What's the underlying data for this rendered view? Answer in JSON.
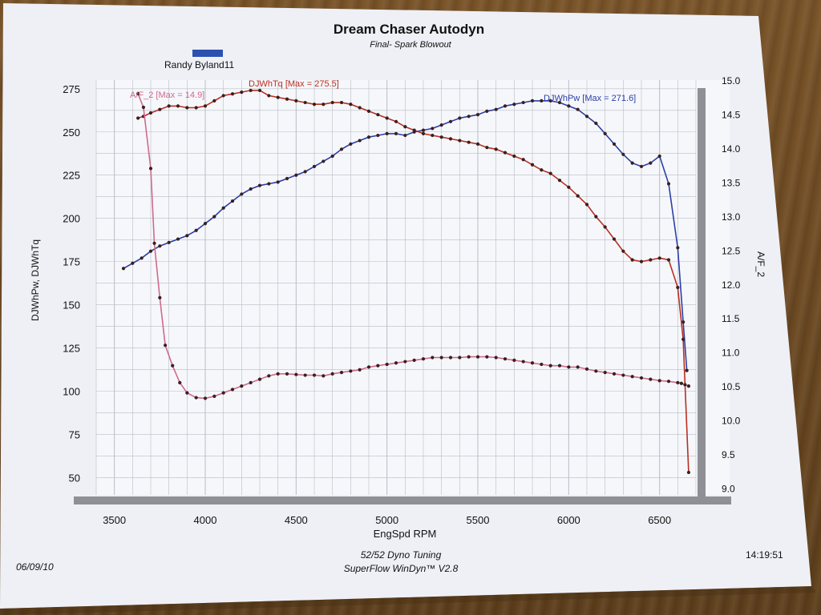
{
  "chart_data": {
    "type": "line",
    "title": "Dream Chaser Autodyn",
    "subtitle": "Final- Spark Blowout",
    "run_label": "Randy Byland11",
    "xlabel": "EngSpd  RPM",
    "ylabel": "DJWhPw, DJWhTq",
    "y2label": "A/F_2",
    "xlim": [
      3400,
      6700
    ],
    "ylim": [
      40,
      280
    ],
    "y2lim": [
      8.9,
      15.0
    ],
    "x_ticks": [
      "3500",
      "4000",
      "4500",
      "5000",
      "5500",
      "6000",
      "6500"
    ],
    "y_ticks": [
      "50",
      "75",
      "100",
      "125",
      "150",
      "175",
      "200",
      "225",
      "250",
      "275"
    ],
    "y2_ticks": [
      "9.0",
      "9.5",
      "10.0",
      "10.5",
      "11.0",
      "11.5",
      "12.0",
      "12.5",
      "13.0",
      "13.5",
      "14.0",
      "14.5",
      "15.0"
    ],
    "grid": true,
    "series": [
      {
        "name": "DJWhPw [Max = 271.6]",
        "axis": "left",
        "color": "#2b3fa8",
        "x": [
          3550,
          3600,
          3650,
          3700,
          3750,
          3800,
          3850,
          3900,
          3950,
          4000,
          4050,
          4100,
          4150,
          4200,
          4250,
          4300,
          4350,
          4400,
          4450,
          4500,
          4550,
          4600,
          4650,
          4700,
          4750,
          4800,
          4850,
          4900,
          4950,
          5000,
          5050,
          5100,
          5150,
          5200,
          5250,
          5300,
          5350,
          5400,
          5450,
          5500,
          5550,
          5600,
          5650,
          5700,
          5750,
          5800,
          5850,
          5900,
          5950,
          6000,
          6050,
          6100,
          6150,
          6200,
          6250,
          6300,
          6350,
          6400,
          6450,
          6500,
          6550,
          6600,
          6630,
          6650
        ],
        "y": [
          171,
          174,
          177,
          181,
          184,
          186,
          188,
          190,
          193,
          197,
          201,
          206,
          210,
          214,
          217,
          219,
          220,
          221,
          223,
          225,
          227,
          230,
          233,
          236,
          240,
          243,
          245,
          247,
          248,
          249,
          249,
          248,
          250,
          251,
          252,
          254,
          256,
          258,
          259,
          260,
          262,
          263,
          265,
          266,
          267,
          268,
          268,
          268,
          267,
          265,
          263,
          259,
          255,
          249,
          243,
          237,
          232,
          230,
          232,
          236,
          220,
          183,
          140,
          112
        ]
      },
      {
        "name": "DJWhTq [Max = 275.5]",
        "axis": "left",
        "color": "#b83020",
        "x": [
          3630,
          3660,
          3700,
          3750,
          3800,
          3850,
          3900,
          3950,
          4000,
          4050,
          4100,
          4150,
          4200,
          4250,
          4300,
          4350,
          4400,
          4450,
          4500,
          4550,
          4600,
          4650,
          4700,
          4750,
          4800,
          4850,
          4900,
          4950,
          5000,
          5050,
          5100,
          5150,
          5200,
          5250,
          5300,
          5350,
          5400,
          5450,
          5500,
          5550,
          5600,
          5650,
          5700,
          5750,
          5800,
          5850,
          5900,
          5950,
          6000,
          6050,
          6100,
          6150,
          6200,
          6250,
          6300,
          6350,
          6400,
          6450,
          6500,
          6550,
          6600,
          6630,
          6660
        ],
        "y": [
          258,
          259,
          261,
          263,
          265,
          265,
          264,
          264,
          265,
          268,
          271,
          272,
          273,
          274,
          274,
          271,
          270,
          269,
          268,
          267,
          266,
          266,
          267,
          267,
          266,
          264,
          262,
          260,
          258,
          256,
          253,
          251,
          249,
          248,
          247,
          246,
          245,
          244,
          243,
          241,
          240,
          238,
          236,
          234,
          231,
          228,
          226,
          222,
          218,
          213,
          208,
          201,
          195,
          188,
          181,
          176,
          175,
          176,
          177,
          176,
          160,
          130,
          53
        ]
      },
      {
        "name": "A/F_2 [Max = 14.9]",
        "axis": "right",
        "color": "#d06a8a",
        "x": [
          3630,
          3660,
          3700,
          3720,
          3750,
          3780,
          3820,
          3860,
          3900,
          3950,
          4000,
          4050,
          4100,
          4150,
          4200,
          4250,
          4300,
          4350,
          4400,
          4450,
          4500,
          4550,
          4600,
          4650,
          4700,
          4750,
          4800,
          4850,
          4900,
          4950,
          5000,
          5050,
          5100,
          5150,
          5200,
          5250,
          5300,
          5350,
          5400,
          5450,
          5500,
          5550,
          5600,
          5650,
          5700,
          5750,
          5800,
          5850,
          5900,
          5950,
          6000,
          6050,
          6100,
          6150,
          6200,
          6250,
          6300,
          6350,
          6400,
          6450,
          6500,
          6550,
          6600,
          6620,
          6640,
          6660
        ],
        "y": [
          14.8,
          14.6,
          13.7,
          12.6,
          11.8,
          11.1,
          10.8,
          10.55,
          10.4,
          10.33,
          10.32,
          10.35,
          10.4,
          10.45,
          10.5,
          10.55,
          10.6,
          10.65,
          10.68,
          10.68,
          10.67,
          10.66,
          10.66,
          10.65,
          10.68,
          10.7,
          10.72,
          10.74,
          10.78,
          10.8,
          10.82,
          10.84,
          10.86,
          10.88,
          10.9,
          10.92,
          10.92,
          10.92,
          10.92,
          10.93,
          10.93,
          10.93,
          10.92,
          10.9,
          10.88,
          10.86,
          10.84,
          10.82,
          10.8,
          10.8,
          10.78,
          10.78,
          10.75,
          10.72,
          10.7,
          10.68,
          10.66,
          10.64,
          10.62,
          10.6,
          10.58,
          10.57,
          10.55,
          10.54,
          10.52,
          10.5
        ]
      }
    ]
  },
  "footer": {
    "date": "06/09/10",
    "shop": "52/52 Dyno Tuning",
    "software": "SuperFlow WinDyn™ V2.8",
    "time": "14:19:51"
  },
  "colors": {
    "paper": "#eef0f6",
    "grid": "#b8bcc4",
    "axis_bar": "#8e9096",
    "power": "#2b3fa8",
    "torque": "#b83020",
    "af": "#d06a8a",
    "marker": "#3a1f1f",
    "legend_swatch": "#2b50b0"
  }
}
